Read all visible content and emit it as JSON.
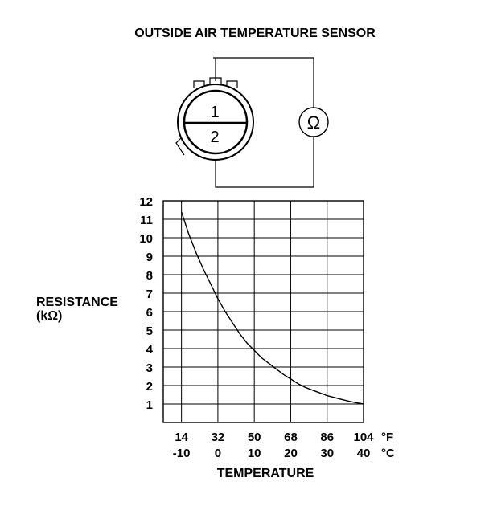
{
  "title": "OUTSIDE AIR TEMPERATURE SENSOR",
  "sensor": {
    "pin_top": "1",
    "pin_bottom": "2",
    "meter_symbol": "Ω"
  },
  "chart_data": {
    "type": "line",
    "ylabel_line1": "RESISTANCE",
    "ylabel_line2": "(kΩ)",
    "xlabel": "TEMPERATURE",
    "y_ticks": [
      "1",
      "2",
      "3",
      "4",
      "5",
      "6",
      "7",
      "8",
      "9",
      "10",
      "11",
      "12"
    ],
    "ylim": [
      0,
      12
    ],
    "x_ticks_f": [
      "14",
      "32",
      "50",
      "68",
      "86",
      "104"
    ],
    "x_ticks_c": [
      "-10",
      "0",
      "10",
      "20",
      "30",
      "40"
    ],
    "x_unit_f": "°F",
    "x_unit_c": "°C",
    "xlim_c": [
      -15,
      40
    ],
    "grid": true,
    "series": [
      {
        "x_c": [
          -10,
          -8,
          -6,
          -4,
          -2,
          0,
          2,
          4,
          6,
          8,
          10,
          12,
          14,
          16,
          18,
          20,
          22,
          24,
          26,
          28,
          30,
          32,
          34,
          36,
          38,
          40
        ],
        "y": [
          11.4,
          10.2,
          9.2,
          8.3,
          7.5,
          6.7,
          6.0,
          5.4,
          4.8,
          4.3,
          3.9,
          3.5,
          3.2,
          2.9,
          2.6,
          2.35,
          2.1,
          1.9,
          1.75,
          1.6,
          1.45,
          1.35,
          1.25,
          1.15,
          1.07,
          1.0
        ]
      }
    ]
  }
}
